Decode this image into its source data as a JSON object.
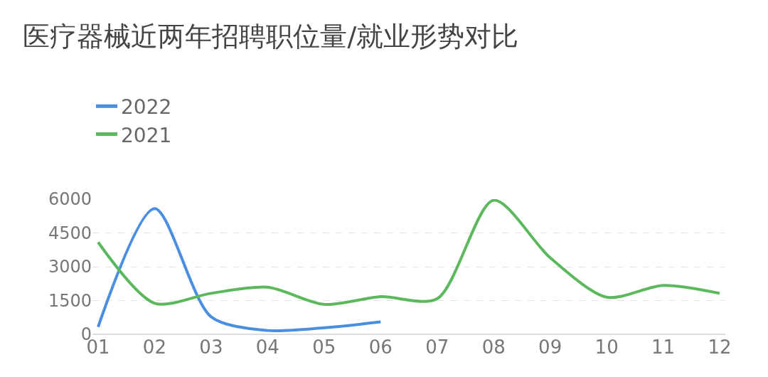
{
  "chart_data": {
    "type": "line",
    "title": "医疗器械近两年招聘职位量/就业形势对比",
    "categories": [
      "01",
      "02",
      "03",
      "04",
      "05",
      "06",
      "07",
      "08",
      "09",
      "10",
      "11",
      "12"
    ],
    "series": [
      {
        "name": "2022",
        "color": "#4a8ee0",
        "values": [
          330,
          5580,
          780,
          170,
          290,
          550,
          null,
          null,
          null,
          null,
          null,
          null
        ]
      },
      {
        "name": "2021",
        "color": "#5cb85c",
        "values": [
          4090,
          1380,
          1820,
          2090,
          1330,
          1670,
          1580,
          5950,
          3400,
          1650,
          2170,
          1820
        ]
      }
    ],
    "ylim": [
      0,
      6000
    ],
    "yticks": [
      0,
      1500,
      3000,
      4500,
      6000
    ],
    "grid": "y",
    "legend": "top left",
    "marker": "none",
    "line_style": "solid"
  }
}
